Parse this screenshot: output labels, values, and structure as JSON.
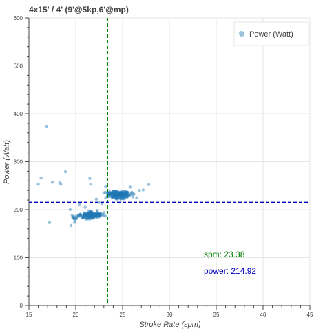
{
  "chart_data": {
    "type": "scatter",
    "title": "4x15' / 4' (9'@5kp,6'@mp)",
    "xlabel": "Stroke Rate (spm)",
    "ylabel": "Power (Watt)",
    "xlim": [
      15,
      45
    ],
    "ylim": [
      0,
      600
    ],
    "x_ticks": [
      15,
      20,
      25,
      30,
      35,
      40,
      45
    ],
    "y_ticks": [
      0,
      100,
      200,
      300,
      400,
      500,
      600
    ],
    "grid": true,
    "legend_position": "top-right",
    "series": [
      {
        "name": "Power (Watt)",
        "color": "#1f77b4",
        "clusters": [
          {
            "x_center": 24.6,
            "y_center": 231,
            "x_spread": 1.0,
            "y_spread": 5,
            "count": 190
          },
          {
            "x_center": 21.6,
            "y_center": 188,
            "x_spread": 1.1,
            "y_spread": 5,
            "count": 150
          },
          {
            "x_center": 19.8,
            "y_center": 183,
            "x_spread": 0.4,
            "y_spread": 6,
            "count": 10
          }
        ],
        "points": [
          {
            "x": 16.9,
            "y": 374
          },
          {
            "x": 18.9,
            "y": 279
          },
          {
            "x": 16.0,
            "y": 253
          },
          {
            "x": 16.3,
            "y": 266
          },
          {
            "x": 18.3,
            "y": 257
          },
          {
            "x": 18.4,
            "y": 253
          },
          {
            "x": 17.5,
            "y": 257
          },
          {
            "x": 17.2,
            "y": 173
          },
          {
            "x": 19.5,
            "y": 167
          },
          {
            "x": 19.4,
            "y": 200
          },
          {
            "x": 21.5,
            "y": 265
          },
          {
            "x": 21.6,
            "y": 253
          },
          {
            "x": 23.2,
            "y": 248
          },
          {
            "x": 22.2,
            "y": 222
          },
          {
            "x": 22.5,
            "y": 215
          },
          {
            "x": 22.8,
            "y": 211
          },
          {
            "x": 21.0,
            "y": 205
          },
          {
            "x": 20.4,
            "y": 210
          },
          {
            "x": 23.2,
            "y": 225
          },
          {
            "x": 23.0,
            "y": 235
          },
          {
            "x": 26.8,
            "y": 240
          },
          {
            "x": 27.2,
            "y": 241
          },
          {
            "x": 27.8,
            "y": 252
          },
          {
            "x": 26.5,
            "y": 225
          },
          {
            "x": 25.8,
            "y": 247
          },
          {
            "x": 22.3,
            "y": 197
          },
          {
            "x": 23.0,
            "y": 194
          }
        ]
      }
    ],
    "vline": {
      "x": 23.38,
      "color": "#008000"
    },
    "hline": {
      "y": 214.92,
      "color": "#0000c0"
    },
    "annotations": [
      {
        "label": "spm:  23.38",
        "color": "#008000"
      },
      {
        "label": "power: 214.92",
        "color": "#0000c0"
      }
    ]
  }
}
